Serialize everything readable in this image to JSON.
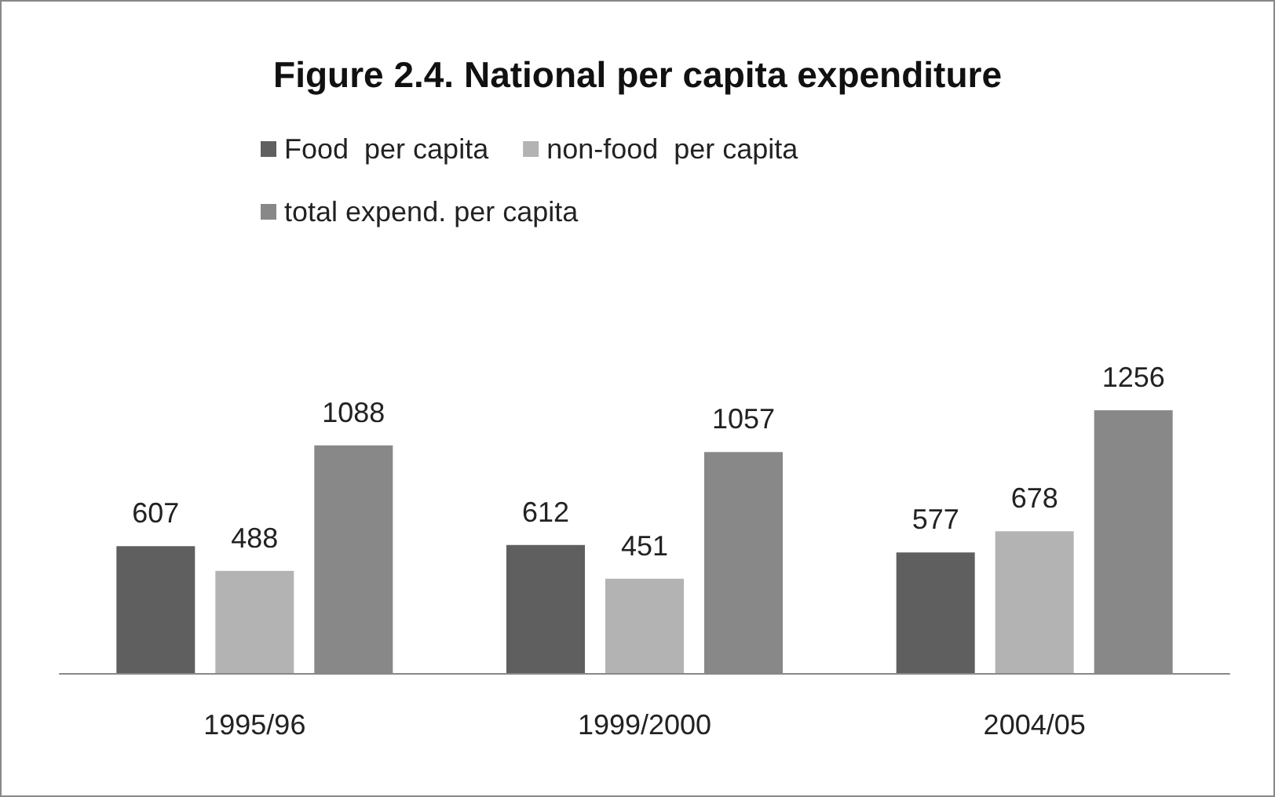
{
  "chart_data": {
    "type": "bar",
    "title": "Figure 2.4. National per capita expenditure",
    "categories": [
      "1995/96",
      "1999/2000",
      "2004/05"
    ],
    "series": [
      {
        "name": "Food  per capita",
        "color": "#5f5f5f",
        "values": [
          607,
          612,
          577
        ]
      },
      {
        "name": "non-food  per capita",
        "color": "#b3b3b3",
        "values": [
          488,
          451,
          678
        ]
      },
      {
        "name": "total expend. per capita",
        "color": "#888888",
        "values": [
          1088,
          1057,
          1256
        ]
      }
    ],
    "data_labels": true,
    "legend": "top left",
    "tick_labels": "x"
  }
}
